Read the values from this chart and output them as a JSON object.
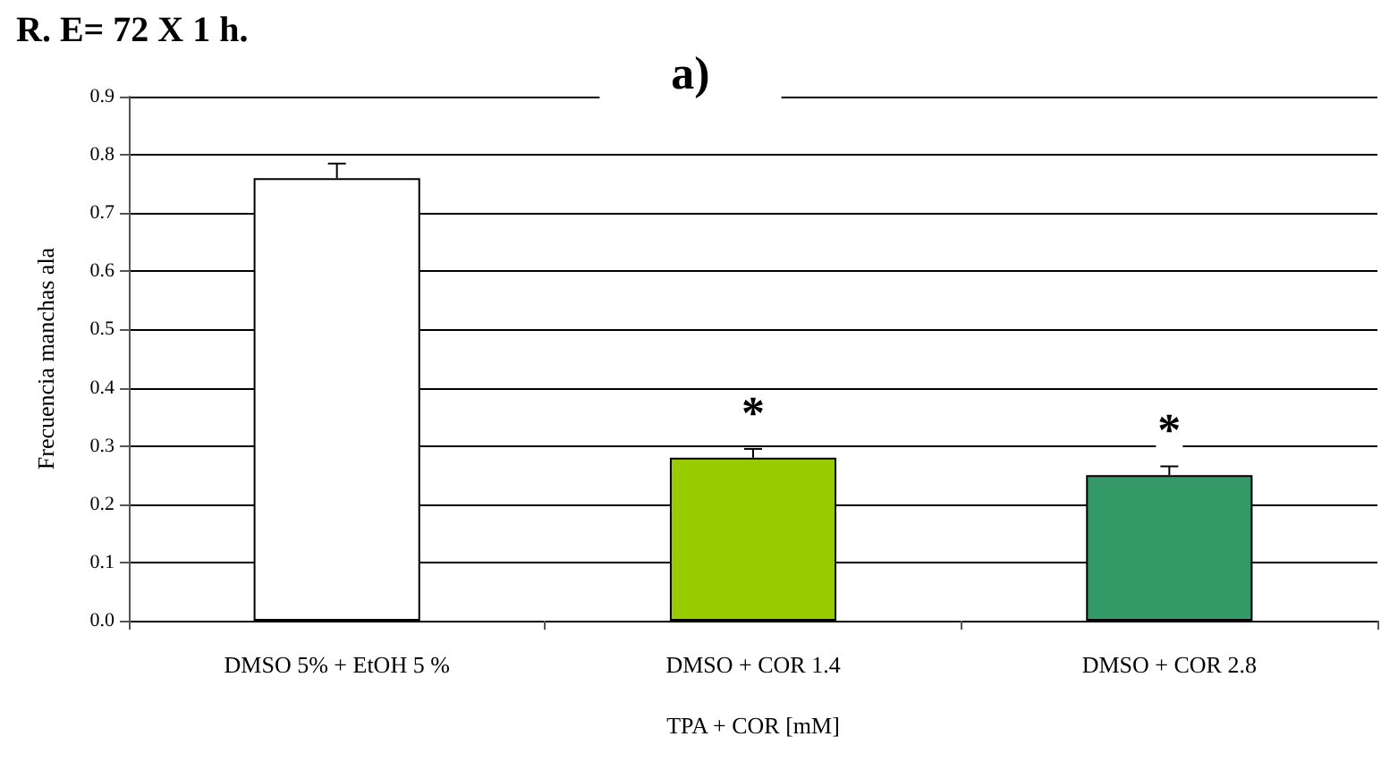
{
  "chart_data": {
    "type": "bar",
    "title": "a)",
    "subtitle": "R. E= 72 X 1 h.",
    "categories": [
      "DMSO 5% + EtOH 5 %",
      "DMSO + COR 1.4",
      "DMSO + COR 2.8"
    ],
    "values": [
      0.76,
      0.28,
      0.25
    ],
    "colors": [
      "#ffffff",
      "#99cc00",
      "#339966"
    ],
    "errors": [
      0.025,
      0.015,
      0.015
    ],
    "xlabel": "TPA + COR [mM]",
    "ylabel": "Frecuencia manchas ala",
    "ylim": [
      0,
      0.9
    ],
    "yticks": [
      {
        "value": 0,
        "label": "0.0"
      },
      0.1,
      0.2,
      0.3,
      0.4,
      0.5,
      0.6,
      0.7,
      0.8,
      0.9
    ],
    "grid": "y",
    "annotations": [
      "*",
      "*"
    ]
  }
}
